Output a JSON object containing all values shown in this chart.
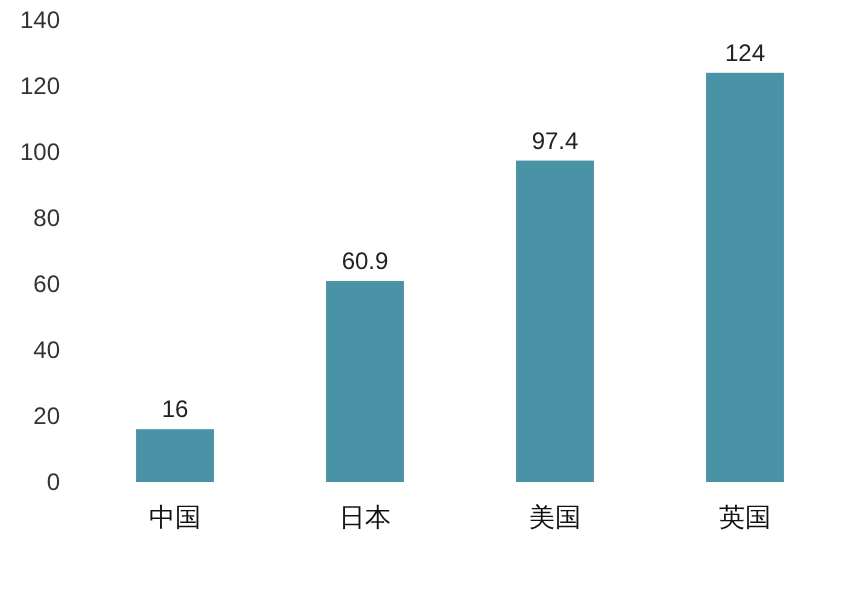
{
  "chart_data": {
    "type": "bar",
    "categories": [
      "中国",
      "日本",
      "美国",
      "英国"
    ],
    "values": [
      16,
      60.9,
      97.4,
      124
    ],
    "color": "#4a92a6",
    "ylim": [
      0,
      140
    ],
    "yticks": [
      0,
      20,
      40,
      60,
      80,
      100,
      120,
      140
    ],
    "data_labels": true
  }
}
